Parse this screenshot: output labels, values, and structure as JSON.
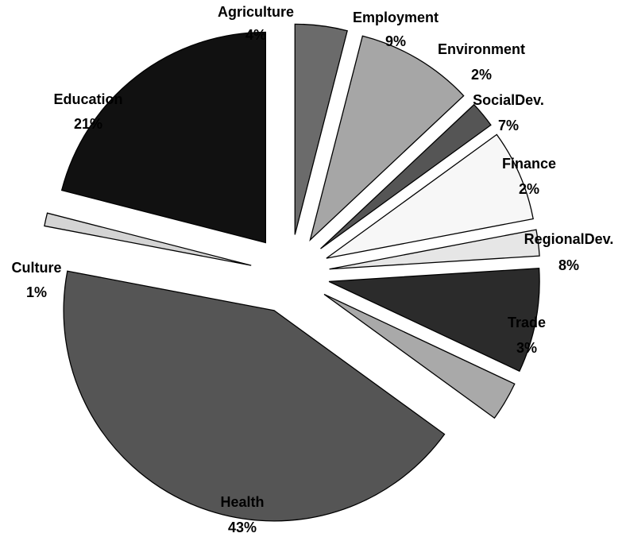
{
  "chart_data": {
    "type": "pie",
    "title": "",
    "slices": [
      {
        "label": "Agriculture",
        "value": 4,
        "value_label": "4%",
        "color": "#6b6b6b"
      },
      {
        "label": "Employment",
        "value": 9,
        "value_label": "9%",
        "color": "#a6a6a6"
      },
      {
        "label": "Environment",
        "value": 2,
        "value_label": "2%",
        "color": "#555555"
      },
      {
        "label": "SocialDev.",
        "value": 7,
        "value_label": "7%",
        "color": "#f7f7f7"
      },
      {
        "label": "Finance",
        "value": 2,
        "value_label": "2%",
        "color": "#e6e6e6"
      },
      {
        "label": "RegionalDev.",
        "value": 8,
        "value_label": "8%",
        "color": "#2b2b2b"
      },
      {
        "label": "Trade",
        "value": 3,
        "value_label": "3%",
        "color": "#a9a9a9"
      },
      {
        "label": "Health",
        "value": 43,
        "value_label": "43%",
        "color": "#555555"
      },
      {
        "label": "Culture",
        "value": 1,
        "value_label": "1%",
        "color": "#d4d4d4"
      },
      {
        "label": "Education",
        "value": 21,
        "value_label": "21%",
        "color": "#111111"
      }
    ],
    "start": "12 o'clock, clockwise",
    "exploded": true,
    "legend": "none"
  }
}
